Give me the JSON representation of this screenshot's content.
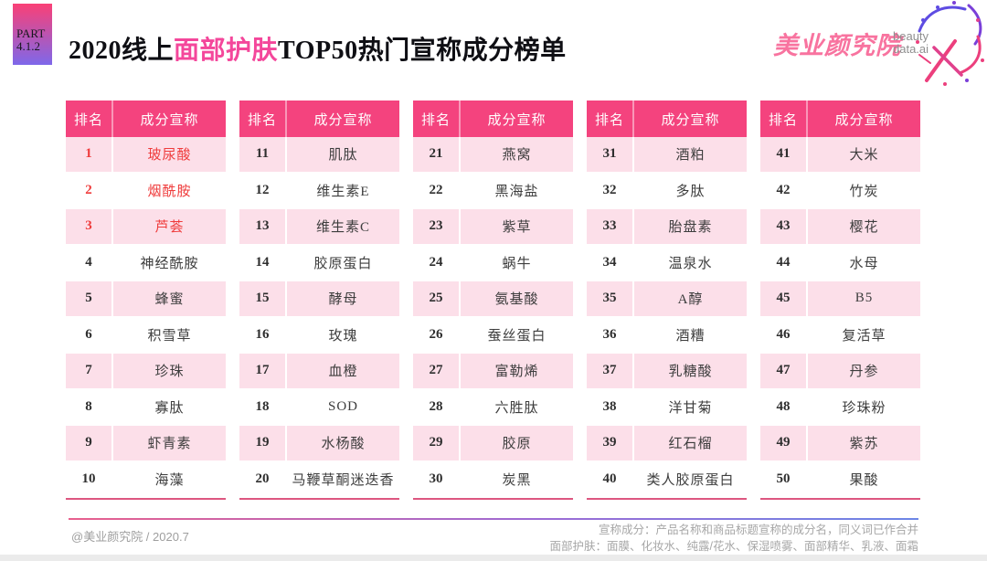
{
  "badge": {
    "line1": "PART",
    "line2": "4.1.2"
  },
  "title": {
    "pre": "2020线上",
    "highlight": "面部护肤",
    "post": "TOP50热门宣称成分榜单"
  },
  "logo": {
    "cn": "美业颜究院",
    "sub1": "beauty",
    "sub2": "data.ai"
  },
  "ranking": {
    "headers": {
      "rank": "排名",
      "claim": "成分宣称"
    },
    "groups": [
      {
        "items": [
          {
            "rank": "1",
            "name": "玻尿酸",
            "hot": true
          },
          {
            "rank": "2",
            "name": "烟酰胺",
            "hot": true
          },
          {
            "rank": "3",
            "name": "芦荟",
            "hot": true
          },
          {
            "rank": "4",
            "name": "神经酰胺"
          },
          {
            "rank": "5",
            "name": "蜂蜜"
          },
          {
            "rank": "6",
            "name": "积雪草"
          },
          {
            "rank": "7",
            "name": "珍珠"
          },
          {
            "rank": "8",
            "name": "寡肽"
          },
          {
            "rank": "9",
            "name": "虾青素"
          },
          {
            "rank": "10",
            "name": "海藻"
          }
        ]
      },
      {
        "items": [
          {
            "rank": "11",
            "name": "肌肽"
          },
          {
            "rank": "12",
            "name": "维生素E"
          },
          {
            "rank": "13",
            "name": "维生素C"
          },
          {
            "rank": "14",
            "name": "胶原蛋白"
          },
          {
            "rank": "15",
            "name": "酵母"
          },
          {
            "rank": "16",
            "name": "玫瑰"
          },
          {
            "rank": "17",
            "name": "血橙"
          },
          {
            "rank": "18",
            "name": "SOD"
          },
          {
            "rank": "19",
            "name": "水杨酸"
          },
          {
            "rank": "20",
            "name": "马鞭草酮迷迭香"
          }
        ]
      },
      {
        "items": [
          {
            "rank": "21",
            "name": "燕窝"
          },
          {
            "rank": "22",
            "name": "黑海盐"
          },
          {
            "rank": "23",
            "name": "紫草"
          },
          {
            "rank": "24",
            "name": "蜗牛"
          },
          {
            "rank": "25",
            "name": "氨基酸"
          },
          {
            "rank": "26",
            "name": "蚕丝蛋白"
          },
          {
            "rank": "27",
            "name": "富勒烯"
          },
          {
            "rank": "28",
            "name": "六胜肽"
          },
          {
            "rank": "29",
            "name": "胶原"
          },
          {
            "rank": "30",
            "name": "炭黑"
          }
        ]
      },
      {
        "items": [
          {
            "rank": "31",
            "name": "酒粕"
          },
          {
            "rank": "32",
            "name": "多肽"
          },
          {
            "rank": "33",
            "name": "胎盘素"
          },
          {
            "rank": "34",
            "name": "温泉水"
          },
          {
            "rank": "35",
            "name": "A醇"
          },
          {
            "rank": "36",
            "name": "酒糟"
          },
          {
            "rank": "37",
            "name": "乳糖酸"
          },
          {
            "rank": "38",
            "name": "洋甘菊"
          },
          {
            "rank": "39",
            "name": "红石榴"
          },
          {
            "rank": "40",
            "name": "类人胶原蛋白"
          }
        ]
      },
      {
        "items": [
          {
            "rank": "41",
            "name": "大米"
          },
          {
            "rank": "42",
            "name": "竹炭"
          },
          {
            "rank": "43",
            "name": "樱花"
          },
          {
            "rank": "44",
            "name": "水母"
          },
          {
            "rank": "45",
            "name": "B5"
          },
          {
            "rank": "46",
            "name": "复活草"
          },
          {
            "rank": "47",
            "name": "丹参"
          },
          {
            "rank": "48",
            "name": "珍珠粉"
          },
          {
            "rank": "49",
            "name": "紫苏"
          },
          {
            "rank": "50",
            "name": "果酸"
          }
        ]
      }
    ]
  },
  "footer": {
    "credit": "@美业颜究院 / 2020.7",
    "note1": "宣称成分：产品名称和商品标题宣称的成分名，同义词已作合并",
    "note2": "面部护肤：面膜、化妆水、纯露/花水、保湿喷雾、面部精华、乳液、面霜"
  },
  "colors": {
    "header_pink": "#F4437E",
    "row_pink": "#FCDFE9",
    "hot_red": "#EF3B3B",
    "title_highlight_pink": "#F4479B",
    "badge_gradient_top": "#FA4076",
    "badge_gradient_bottom": "#7E68EA",
    "table_underline": "#DD5680",
    "footer_line_left": "#E8608D",
    "footer_line_right": "#6C86E6",
    "logo_pink": "#F8739F"
  }
}
